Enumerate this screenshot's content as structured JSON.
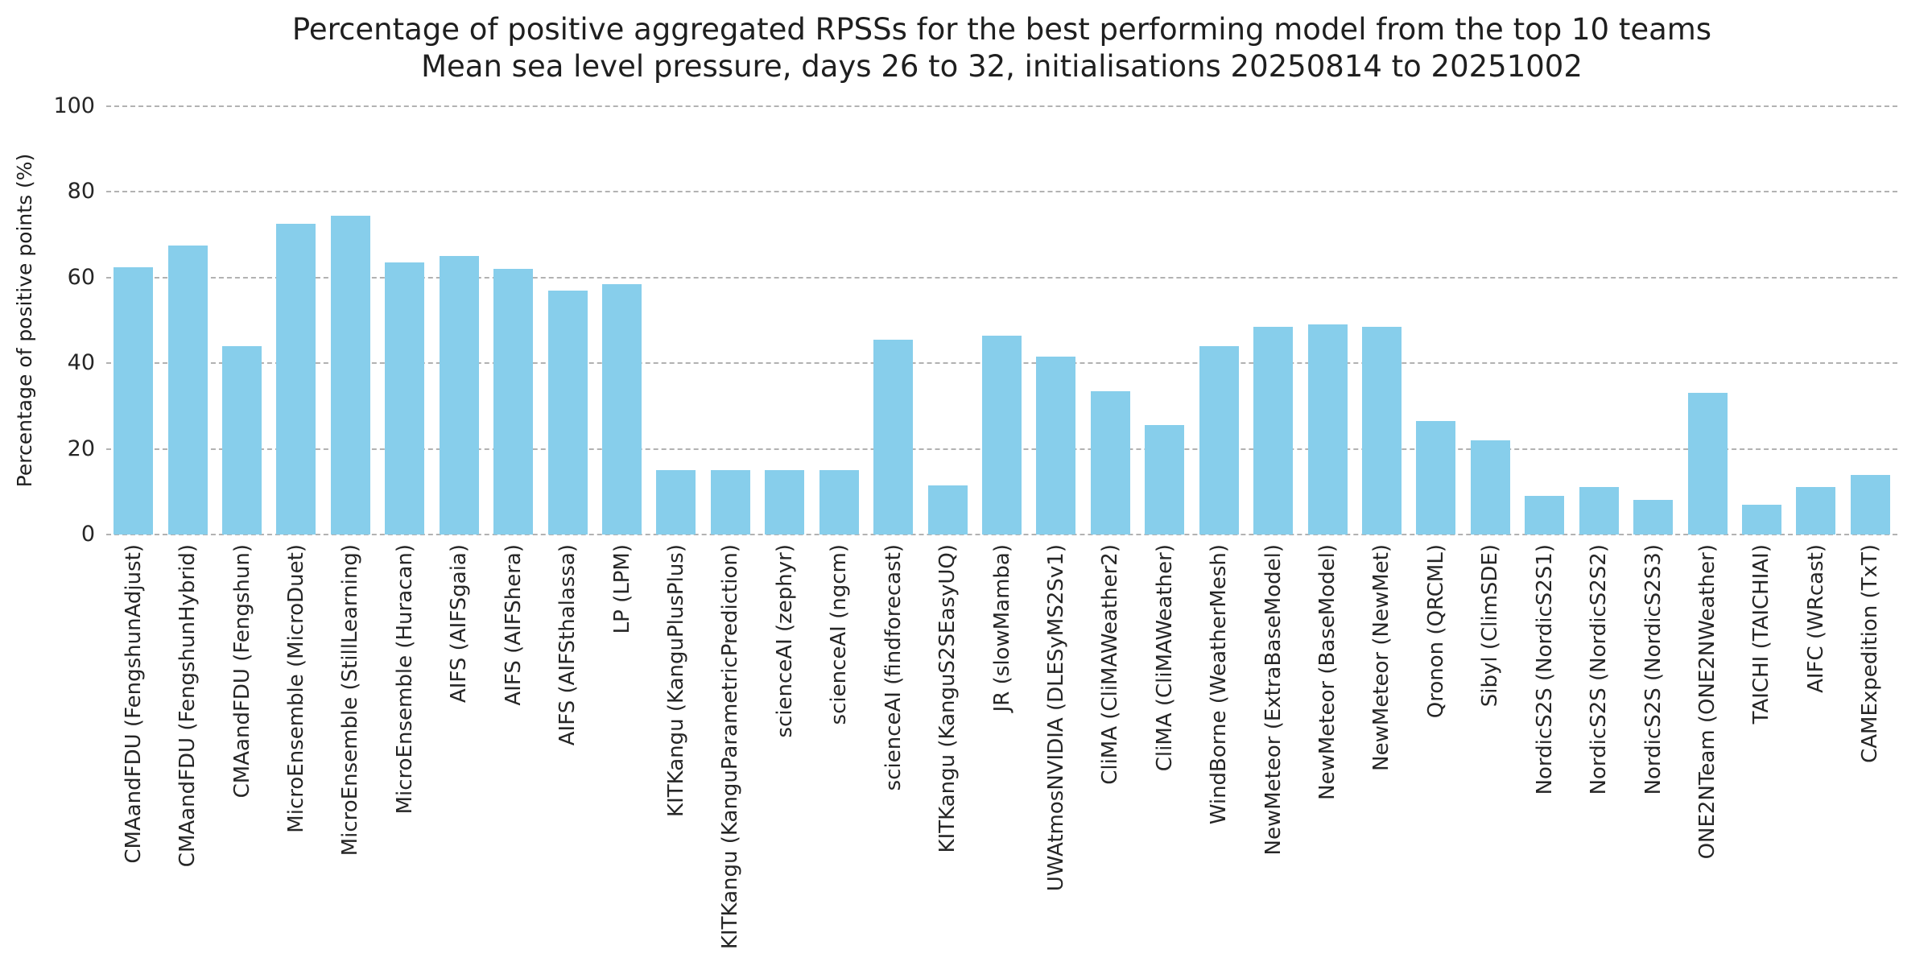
{
  "chart_data": {
    "type": "bar",
    "title": "Percentage of positive aggregated RPSSs for the best performing model from the top 10 teams",
    "subtitle": "Mean sea level pressure, days 26 to 32, initialisations 20250814 to 20251002",
    "xlabel": "",
    "ylabel": "Percentage of positive points (%)",
    "ylim": [
      0,
      100
    ],
    "yticks": [
      0,
      20,
      40,
      60,
      80,
      100
    ],
    "grid": "horizontal-dashed",
    "legend": "none",
    "bar_color": "#87CEEB",
    "gridline_color": "#b2b2b2",
    "text_color": "#262626",
    "background_color": "#ffffff",
    "categories": [
      "CMAandFDU (FengshunAdjust)",
      "CMAandFDU (FengshunHybrid)",
      "CMAandFDU (Fengshun)",
      "MicroEnsemble (MicroDuet)",
      "MicroEnsemble (StillLearning)",
      "MicroEnsemble (Huracan)",
      "AIFS (AIFSgaia)",
      "AIFS (AIFShera)",
      "AIFS (AIFSthalassa)",
      "LP (LPM)",
      "KITKangu (KanguPlusPlus)",
      "KITKangu (KanguParametricPrediction)",
      "scienceAI (zephyr)",
      "scienceAI (ngcm)",
      "scienceAI (findforecast)",
      "KITKangu (KanguS2SEasyUQ)",
      "JR (slowMamba)",
      "UWAtmosNVIDIA (DLESyMS2Sv1)",
      "CliMA (CliMAWeather2)",
      "CliMA (CliMAWeather)",
      "WindBorne (WeatherMesh)",
      "NewMeteor (ExtraBaseModel)",
      "NewMeteor (BaseModel)",
      "NewMeteor (NewMet)",
      "Qronon (QRCML)",
      "Sibyl (ClimSDE)",
      "NordicS2S (NordicS2S1)",
      "NordicS2S (NordicS2S2)",
      "NordicS2S (NordicS2S3)",
      "ONE2NTeam (ONE2NWeather)",
      "TAICHI (TAICHIAI)",
      "AIFC (WRcast)",
      "CAMExpedition (TxT)"
    ],
    "values": [
      62.5,
      67.5,
      44,
      72.5,
      74.5,
      63.5,
      65,
      62,
      57,
      58.5,
      15,
      15,
      15,
      15,
      45.5,
      11.5,
      46.5,
      41.5,
      33.5,
      25.5,
      44,
      48.5,
      49,
      48.5,
      26.5,
      22,
      9,
      11,
      8,
      33,
      7,
      11,
      14
    ]
  }
}
